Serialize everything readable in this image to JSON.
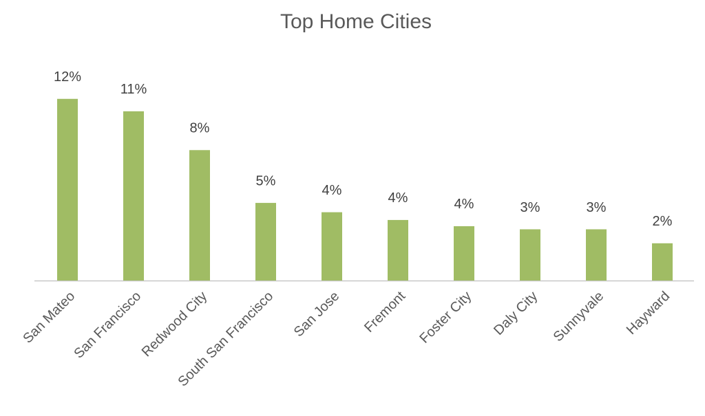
{
  "chart_data": {
    "type": "bar",
    "title": "Top Home Cities",
    "categories": [
      "San Mateo",
      "San Francisco",
      "Redwood City",
      "South San Francisco",
      "San Jose",
      "Fremont",
      "Foster City",
      "Daly City",
      "Sunnyvale",
      "Hayward"
    ],
    "values": [
      11.7,
      10.9,
      8.4,
      5.0,
      4.4,
      3.9,
      3.5,
      3.3,
      3.3,
      2.4
    ],
    "value_labels": [
      "12%",
      "11%",
      "8%",
      "5%",
      "4%",
      "4%",
      "4%",
      "3%",
      "3%",
      "2%"
    ],
    "color": "#a0bc64",
    "ylim": [
      0,
      12
    ]
  }
}
